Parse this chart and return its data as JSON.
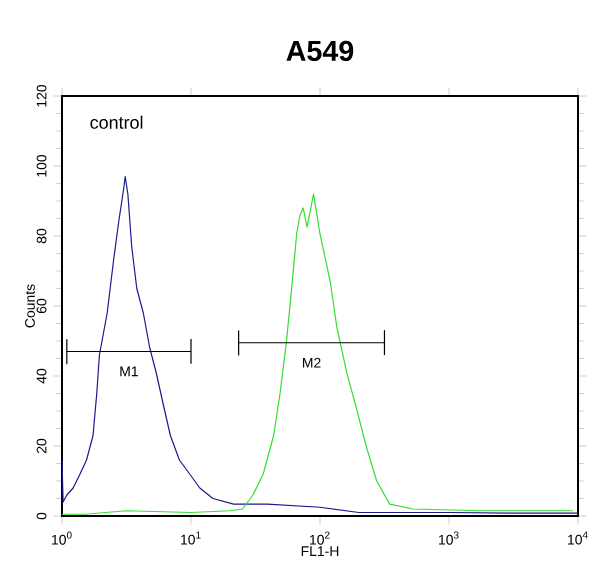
{
  "chart_data": {
    "type": "line",
    "title": "A549",
    "xlabel": "FL1-H",
    "ylabel": "Counts",
    "log": "x",
    "xlim": [
      1,
      10000
    ],
    "ylim": [
      0,
      120
    ],
    "xticks": [
      {
        "value": 1,
        "label": "10$^{0}$"
      },
      {
        "value": 10,
        "label": "10$^{1}$"
      },
      {
        "value": 100,
        "label": "10$^{2}$"
      },
      {
        "value": 1000,
        "label": "10$^{3}$"
      },
      {
        "value": 10000,
        "label": "10$^{4}$"
      }
    ],
    "yticks": [
      0,
      20,
      40,
      60,
      80,
      100,
      120
    ],
    "series": [
      {
        "color": "#1a1a8c",
        "x": [
          1,
          1.02,
          1.09,
          1.22,
          1.38,
          1.55,
          1.74,
          1.86,
          1.95,
          2.24,
          2.51,
          2.75,
          3.02,
          3.09,
          3.24,
          3.47,
          3.8,
          4.27,
          4.79,
          5.37,
          6.17,
          6.92,
          8.13,
          9.77,
          11.7,
          14.8,
          21.4,
          38.9,
          100,
          200,
          1000,
          3162,
          10000
        ],
        "values": [
          16,
          4,
          6,
          8,
          12,
          16,
          23,
          35,
          46,
          58,
          73,
          84,
          94,
          97,
          92,
          77,
          65,
          58,
          48,
          41,
          31,
          23,
          16,
          12,
          8,
          5,
          3.4,
          3.4,
          2.5,
          1,
          1,
          0.8,
          0.8
        ]
      },
      {
        "color": "#33dd33",
        "x": [
          1,
          1.5,
          3.16,
          10,
          20,
          25.1,
          30.2,
          36.3,
          43.7,
          49,
          55,
          60.3,
          66.1,
          70,
          74.1,
          79.4,
          89.1,
          100,
          120,
          135,
          162,
          191,
          229,
          275,
          347,
          525,
          1738,
          9120
        ],
        "values": [
          0.5,
          0.5,
          1.5,
          1,
          1.5,
          2,
          6,
          12,
          23,
          35,
          50,
          65,
          81,
          86,
          88,
          82.5,
          92,
          80.6,
          67,
          54,
          40.6,
          31,
          19.7,
          10,
          3.4,
          2,
          1.5,
          1.5
        ]
      },
      {
        "color": "#000000",
        "x": [
          1.09,
          1.09,
          1.09,
          10,
          10,
          10
        ],
        "values": [
          50.5,
          43.5,
          47,
          47,
          50.5,
          43.5
        ]
      },
      {
        "color": "#000000",
        "x": [
          23.4,
          23.4,
          23.4,
          316,
          316,
          316
        ],
        "values": [
          53,
          46,
          49.5,
          49.5,
          53,
          46
        ]
      }
    ],
    "annotations": [
      "control",
      "M1",
      "M2"
    ]
  }
}
